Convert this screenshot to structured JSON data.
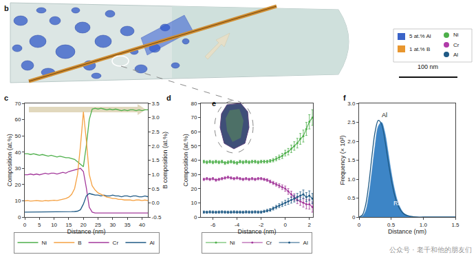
{
  "chart_data": [
    {
      "panel": "c",
      "type": "line",
      "grid": false,
      "legend": "bottom",
      "x_label": "Distance (nm)",
      "y_label": "Composition (at.%)",
      "y2_label": "B composition (at.%)",
      "x": [
        0,
        1,
        2,
        3,
        4,
        5,
        6,
        7,
        8,
        9,
        10,
        11,
        12,
        13,
        14,
        15,
        16,
        17,
        18,
        19,
        20,
        21,
        22,
        23,
        24,
        25,
        26,
        27,
        28,
        29,
        30,
        31,
        32,
        33,
        34,
        35,
        36,
        37,
        38,
        39,
        40,
        41,
        42
      ],
      "xlim": [
        0,
        42
      ],
      "xticks": [
        0,
        5,
        10,
        15,
        20,
        25,
        30,
        35,
        40
      ],
      "ylim": [
        0,
        70
      ],
      "yticks": [
        0,
        10,
        20,
        30,
        40,
        50,
        60,
        70
      ],
      "y2lim": [
        -0.5,
        3.5
      ],
      "y2ticks": [
        -0.5,
        {
          "value": 0,
          "label": "0.0"
        },
        0.5,
        {
          "value": 1,
          "label": "1.0"
        },
        1.5,
        {
          "value": 2,
          "label": "2.0"
        },
        2.5,
        {
          "value": 3,
          "label": "3.0"
        },
        3.5
      ],
      "series": [
        {
          "name": "Ni",
          "color": "#4daf4a",
          "values": [
            39,
            39,
            38.5,
            39,
            38.5,
            38,
            38.5,
            38,
            37.5,
            38,
            37.5,
            37,
            37.5,
            37,
            36.5,
            36.5,
            36,
            35.5,
            34,
            32.5,
            31,
            44,
            60,
            66.5,
            67,
            66.5,
            67,
            66.5,
            66,
            66.5,
            66,
            66.5,
            66,
            65.5,
            66,
            65.5,
            66,
            66,
            65.5,
            66,
            65.5,
            66,
            66
          ]
        },
        {
          "name": "B",
          "color": "#f5a142",
          "axis": "y2",
          "values": [
            0.07,
            0.08,
            0.06,
            0.07,
            0.08,
            0.07,
            0.06,
            0.08,
            0.07,
            0.08,
            0.09,
            0.08,
            0.1,
            0.12,
            0.15,
            0.2,
            0.3,
            0.5,
            1.0,
            2.0,
            3.2,
            2.2,
            1.0,
            0.6,
            0.45,
            0.35,
            0.3,
            0.25,
            0.2,
            0.18,
            0.15,
            0.15,
            0.12,
            0.12,
            0.1,
            0.1,
            0.1,
            0.08,
            0.1,
            0.1,
            0.08,
            0.1,
            0.08
          ]
        },
        {
          "name": "Cr",
          "color": "#a3399b",
          "values": [
            26,
            26,
            26.5,
            26,
            26.5,
            26,
            26.5,
            27,
            26.5,
            27,
            27,
            26.5,
            27,
            27.5,
            27,
            28,
            28.5,
            29,
            29.5,
            30,
            28,
            18,
            6,
            3,
            2.5,
            2.5,
            2.4,
            2.5,
            2.6,
            2.5,
            2.4,
            2.5,
            2.5,
            2.6,
            2.5,
            2.4,
            2.5,
            2.5,
            2.6,
            2.5,
            2.4,
            2.5,
            2.5
          ]
        },
        {
          "name": "Al",
          "color": "#1f5a85",
          "values": [
            3,
            3,
            3,
            3,
            3,
            3,
            3,
            3,
            3,
            3,
            3,
            3,
            3,
            3,
            3.2,
            3.2,
            3.3,
            3.4,
            3.6,
            4.5,
            8,
            13,
            14.5,
            14,
            13.5,
            13.5,
            13,
            13.5,
            13,
            13,
            13.5,
            13,
            13,
            12.5,
            13,
            13,
            12.5,
            13,
            13,
            12.5,
            12.5,
            13,
            12.5
          ]
        }
      ]
    },
    {
      "panel": "d",
      "type": "line",
      "marker": "circle",
      "grid": false,
      "legend": "bottom",
      "inset_label": "e",
      "x_label": "Distance (nm)",
      "y_label": "Composition (at.%)",
      "x": [
        -6.75,
        -6.5,
        -6.25,
        -6,
        -5.75,
        -5.5,
        -5.25,
        -5,
        -4.75,
        -4.5,
        -4.25,
        -4,
        -3.75,
        -3.5,
        -3.25,
        -3,
        -2.75,
        -2.5,
        -2.25,
        -2,
        -1.75,
        -1.5,
        -1.25,
        -1,
        -0.75,
        -0.5,
        -0.25,
        0,
        0.25,
        0.5,
        0.75,
        1,
        1.25,
        1.5,
        1.75,
        2,
        2.25
      ],
      "xlim": [
        -7,
        2.3
      ],
      "xticks": [
        -6,
        -4,
        -2,
        0,
        2
      ],
      "ylim": [
        0,
        80
      ],
      "yticks": [
        0,
        10,
        20,
        30,
        40,
        50,
        60,
        70,
        80
      ],
      "series": [
        {
          "name": "Ni",
          "color": "#4daf4a",
          "values": [
            39,
            38.5,
            39,
            38.5,
            39,
            38.5,
            39,
            38,
            38.5,
            39,
            38.5,
            38,
            39,
            38.5,
            39,
            38.5,
            39,
            39,
            38.5,
            39,
            39,
            39,
            39.5,
            40,
            41,
            42,
            43,
            45,
            46,
            48,
            50,
            52,
            55,
            57,
            62,
            67,
            70
          ],
          "errors": [
            1,
            1,
            1,
            1,
            1,
            1,
            1,
            1,
            1,
            1,
            1,
            1,
            1,
            1,
            1,
            1,
            1,
            1,
            1,
            1,
            1,
            1,
            1,
            1.2,
            1.4,
            1.6,
            1.8,
            2,
            2.3,
            2.6,
            3,
            3.4,
            3.8,
            4.2,
            4.6,
            5,
            5.5
          ]
        },
        {
          "name": "Cr",
          "color": "#a3399b",
          "values": [
            26.5,
            27,
            26.5,
            27,
            26,
            26.5,
            27,
            27.5,
            28,
            27.5,
            27,
            27.5,
            27,
            26.5,
            27,
            26.5,
            27,
            26.5,
            27,
            27,
            26.5,
            26,
            25,
            24,
            23,
            22,
            21,
            20,
            18,
            16,
            14,
            12,
            11,
            10,
            9,
            9,
            7
          ],
          "errors": [
            0.8,
            0.8,
            0.8,
            0.8,
            0.8,
            0.8,
            0.8,
            0.8,
            0.8,
            0.8,
            0.8,
            0.8,
            0.8,
            0.8,
            0.8,
            0.8,
            0.8,
            0.8,
            0.8,
            0.8,
            0.8,
            0.9,
            1,
            1.1,
            1.2,
            1.4,
            1.6,
            1.8,
            2,
            2.2,
            2.4,
            2.6,
            2.8,
            3,
            3.2,
            3.4,
            3.6
          ]
        },
        {
          "name": "Al",
          "color": "#1f5a85",
          "values": [
            3.5,
            3.4,
            3.6,
            3.5,
            3.4,
            3.5,
            3.6,
            3.5,
            3.4,
            3.5,
            3.6,
            3.5,
            3.5,
            3.4,
            3.6,
            3.5,
            3.5,
            3.6,
            3.5,
            3.5,
            4,
            4.5,
            5,
            6,
            7,
            8,
            9,
            10,
            11,
            12,
            13,
            14,
            15,
            16,
            14,
            15,
            13
          ],
          "errors": [
            0.8,
            0.8,
            0.8,
            0.8,
            0.8,
            0.8,
            0.8,
            0.8,
            0.8,
            0.8,
            0.8,
            0.8,
            0.8,
            0.8,
            0.8,
            0.8,
            0.8,
            0.8,
            0.8,
            0.8,
            0.8,
            0.9,
            1,
            1.1,
            1.2,
            1.4,
            1.6,
            1.8,
            2,
            2.2,
            2.4,
            2.6,
            2.8,
            3,
            3.2,
            3.4,
            3.6
          ]
        }
      ]
    },
    {
      "panel": "f",
      "type": "line",
      "grid": false,
      "x_label": "Distance (nm)",
      "y_label": "Frequency (× 10³)",
      "x": [
        0,
        0.05,
        0.1,
        0.15,
        0.2,
        0.25,
        0.3,
        0.35,
        0.4,
        0.45,
        0.5,
        0.55,
        0.6,
        0.65,
        0.7,
        0.75,
        0.8,
        0.9,
        1.0,
        1.1,
        1.2,
        1.3,
        1.5
      ],
      "xlim": [
        0,
        1.5
      ],
      "xticks": [
        0,
        0.5,
        {
          "value": 1,
          "label": "1.0"
        },
        1.5
      ],
      "ylim": [
        0,
        3
      ],
      "yticks": [
        0,
        0.5,
        {
          "value": 1,
          "label": "1.0"
        },
        1.5,
        {
          "value": 2,
          "label": "2.0"
        },
        2.5,
        {
          "value": 3,
          "label": "3.0"
        }
      ],
      "series": [
        {
          "name": "Random",
          "type": "area",
          "color": "#3d85c6",
          "values": [
            0,
            0.02,
            0.15,
            0.55,
            1.2,
            1.9,
            2.4,
            2.5,
            2.25,
            1.75,
            1.2,
            0.75,
            0.42,
            0.22,
            0.1,
            0.05,
            0.02,
            0,
            0,
            0,
            0,
            0,
            0
          ]
        },
        {
          "name": "Al",
          "type": "line",
          "color": "#1f5a85",
          "values": [
            0,
            0.05,
            0.3,
            0.85,
            1.6,
            2.25,
            2.55,
            2.45,
            2.05,
            1.5,
            1.0,
            0.6,
            0.33,
            0.17,
            0.08,
            0.04,
            0.02,
            0,
            0,
            0,
            0,
            0,
            0
          ]
        }
      ]
    }
  ],
  "image_panel": {
    "panel": "b",
    "scale_bar": "100 nm",
    "legend": [
      {
        "label": "5 at.% Al",
        "color": "#3a63c8",
        "marker": "square"
      },
      {
        "label": "1 at.% B",
        "color": "#e8962e",
        "marker": "square"
      },
      {
        "label": "Ni",
        "color": "#4daf4a",
        "marker": "circle"
      },
      {
        "label": "Cr",
        "color": "#b03aa8",
        "marker": "circle"
      },
      {
        "label": "Al",
        "color": "#1f5a85",
        "marker": "circle"
      }
    ]
  },
  "watermark": "公众号 · 老千和他的朋友们"
}
